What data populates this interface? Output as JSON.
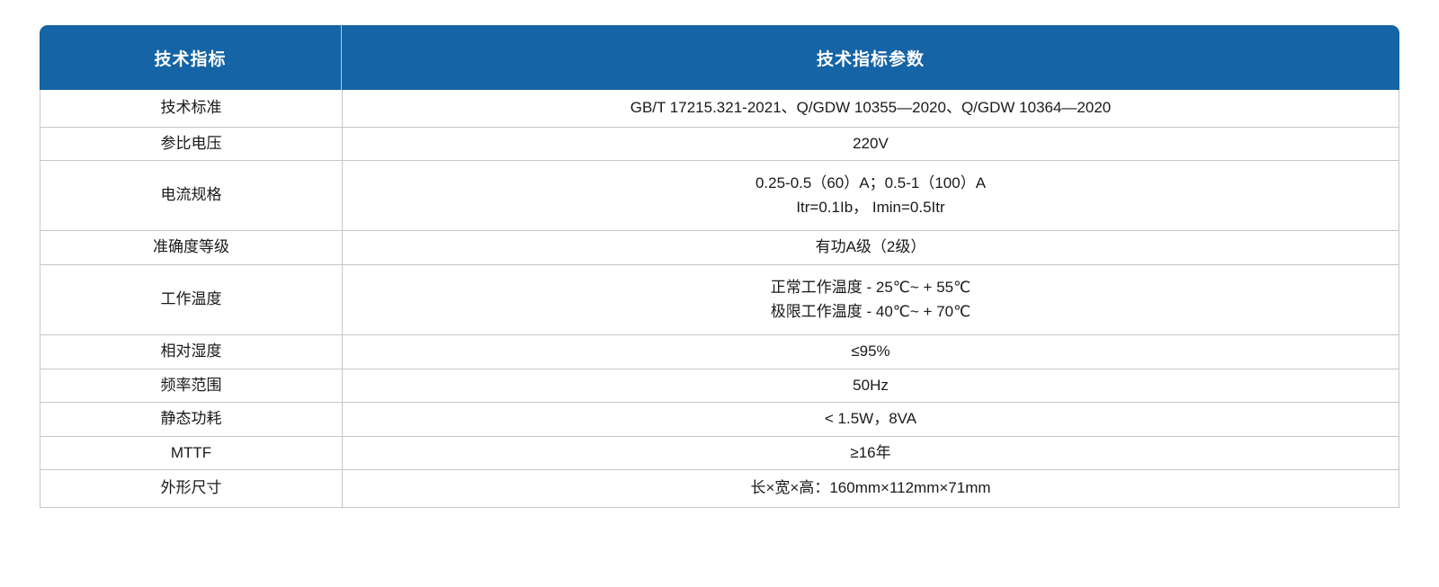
{
  "colors": {
    "header_bg": "#1564a5",
    "header_text": "#ffffff",
    "border": "#c6c6c6",
    "text": "#1a1a1a",
    "page_bg": "#ffffff"
  },
  "table": {
    "header": {
      "col1": "技术指标",
      "col2": "技术指标参数"
    },
    "rows": [
      {
        "label": "技术标准",
        "lines": [
          "GB/T 17215.321-2021、Q/GDW 10355—2020、Q/GDW 10364—2020"
        ]
      },
      {
        "label": "参比电压",
        "lines": [
          "220V"
        ]
      },
      {
        "label": "电流规格",
        "lines": [
          "0.25-0.5（60）A；0.5-1（100）A",
          "Itr=0.1Ib， Imin=0.5Itr"
        ]
      },
      {
        "label": "准确度等级",
        "lines": [
          "有功A级（2级）"
        ]
      },
      {
        "label": "工作温度",
        "lines": [
          "正常工作温度 - 25℃~ + 55℃",
          "极限工作温度 - 40℃~ + 70℃"
        ]
      },
      {
        "label": "相对湿度",
        "lines": [
          "≤95%"
        ]
      },
      {
        "label": "频率范围",
        "lines": [
          "50Hz"
        ]
      },
      {
        "label": "静态功耗",
        "lines": [
          "< 1.5W，8VA"
        ]
      },
      {
        "label": "MTTF",
        "lines": [
          "≥16年"
        ]
      },
      {
        "label": "外形尺寸",
        "lines": [
          "长×宽×高：160mm×112mm×71mm"
        ]
      }
    ]
  }
}
